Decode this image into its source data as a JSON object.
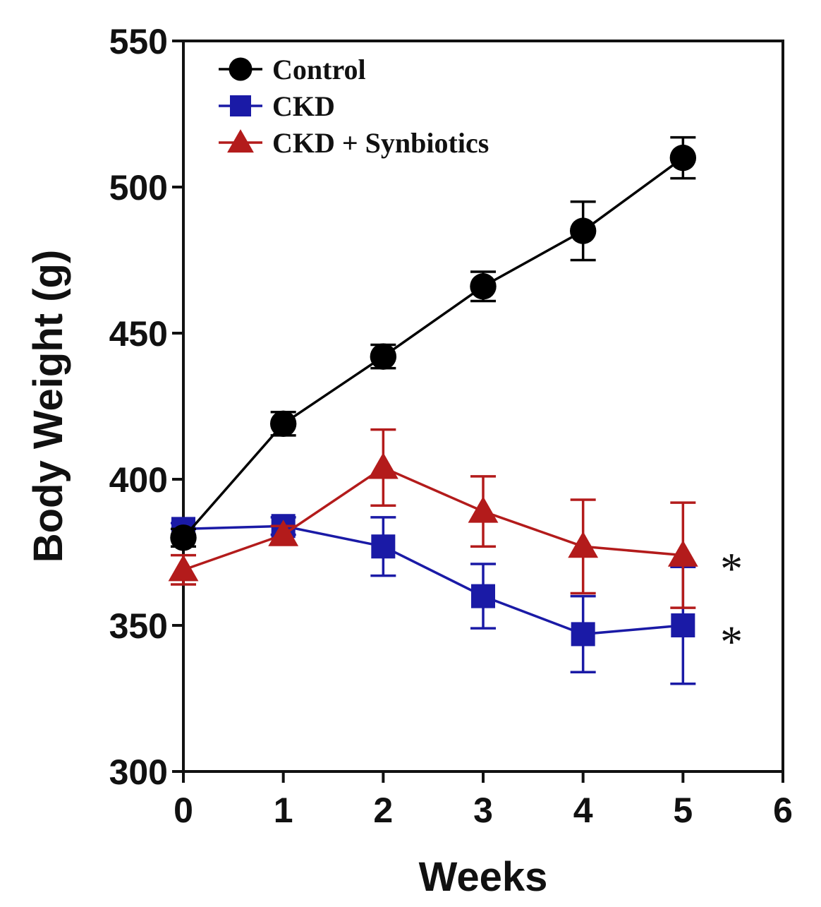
{
  "chart_data": {
    "type": "line",
    "title": "",
    "xlabel": "Weeks",
    "ylabel": "Body Weight (g)",
    "xlim": [
      0,
      6
    ],
    "ylim": [
      300,
      550
    ],
    "x_ticks": [
      "0",
      "1",
      "2",
      "3",
      "4",
      "5",
      "6"
    ],
    "y_ticks": [
      "300",
      "350",
      "400",
      "450",
      "500",
      "550"
    ],
    "grid": false,
    "legend_position": "top-left",
    "series": [
      {
        "name": "Control",
        "color": "#000000",
        "marker": "circle",
        "x": [
          0,
          1,
          2,
          3,
          4,
          5
        ],
        "y": [
          380,
          419,
          442,
          466,
          485,
          510
        ],
        "error": [
          3,
          4,
          4,
          5,
          10,
          7
        ]
      },
      {
        "name": "CKD",
        "color": "#1a1aa6",
        "marker": "square",
        "x": [
          0,
          1,
          2,
          3,
          4,
          5
        ],
        "y": [
          383,
          384,
          377,
          360,
          347,
          350
        ],
        "error": [
          2,
          3,
          10,
          11,
          13,
          20
        ]
      },
      {
        "name": "CKD + Synbiotics",
        "color": "#b31b1b",
        "marker": "triangle",
        "x": [
          0,
          1,
          2,
          3,
          4,
          5
        ],
        "y": [
          369,
          381,
          404,
          389,
          377,
          374
        ],
        "error": [
          5,
          3,
          13,
          12,
          16,
          18
        ]
      }
    ],
    "annotations": [
      {
        "text": "*",
        "x": 5.5,
        "y": 373
      },
      {
        "text": "*",
        "x": 5.5,
        "y": 348
      }
    ]
  }
}
